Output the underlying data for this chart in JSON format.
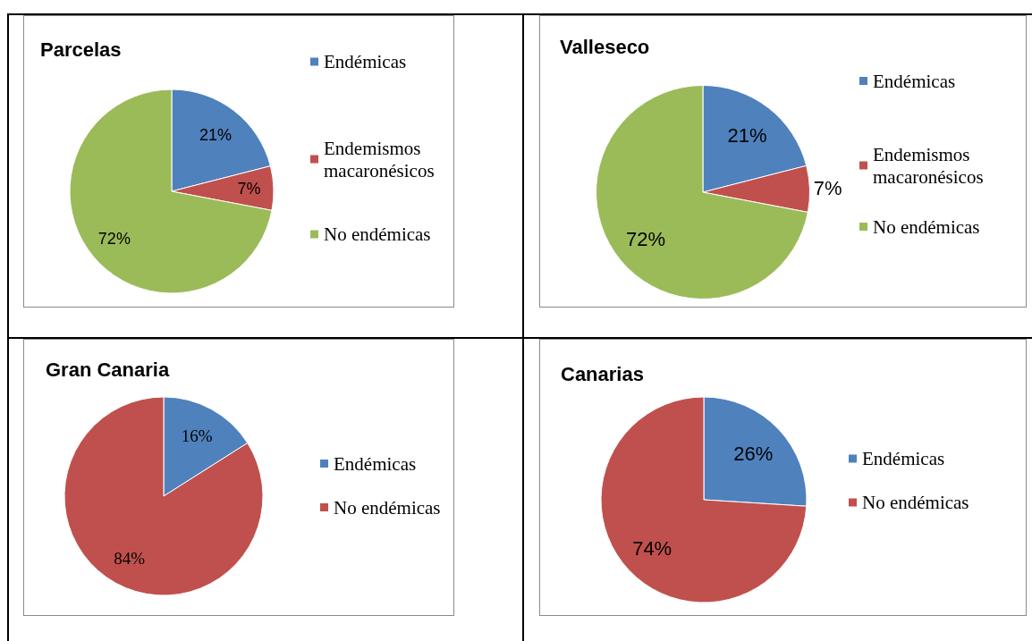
{
  "chart_data": [
    {
      "type": "pie",
      "title": "Parcelas",
      "categories": [
        "Endémicas",
        "Endemismos macaronésicos",
        "No endémicas"
      ],
      "values": [
        21,
        7,
        72
      ],
      "colors": [
        "#4f81bd",
        "#c0504d",
        "#9bbb59"
      ],
      "value_labels": [
        "21%",
        "7%",
        "72%"
      ],
      "legend": "right"
    },
    {
      "type": "pie",
      "title": "Valleseco",
      "categories": [
        "Endémicas",
        "Endemismos macaronésicos",
        "No endémicas"
      ],
      "values": [
        21,
        7,
        72
      ],
      "colors": [
        "#4f81bd",
        "#c0504d",
        "#9bbb59"
      ],
      "value_labels": [
        "21%",
        "7%",
        "72%"
      ],
      "legend": "right"
    },
    {
      "type": "pie",
      "title": "Gran Canaria",
      "categories": [
        "Endémicas",
        "No endémicas"
      ],
      "values": [
        16,
        84
      ],
      "colors": [
        "#4f81bd",
        "#c0504d"
      ],
      "value_labels": [
        "16%",
        "84%"
      ],
      "legend": "right"
    },
    {
      "type": "pie",
      "title": "Canarias",
      "categories": [
        "Endémicas",
        "No endémicas"
      ],
      "values": [
        26,
        74
      ],
      "colors": [
        "#4f81bd",
        "#c0504d"
      ],
      "value_labels": [
        "26%",
        "74%"
      ],
      "legend": "right"
    }
  ]
}
